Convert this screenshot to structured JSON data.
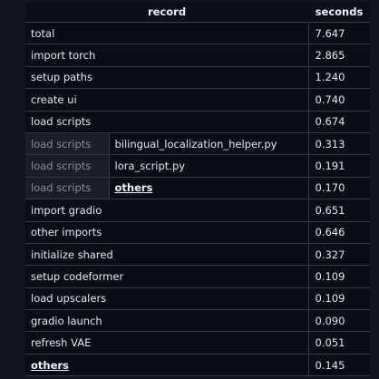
{
  "table": {
    "headers": {
      "record": "record",
      "seconds": "seconds"
    },
    "rows": [
      {
        "record": "total",
        "seconds": "7.647"
      },
      {
        "record": "import torch",
        "seconds": "2.865"
      },
      {
        "record": "setup paths",
        "seconds": "1.240"
      },
      {
        "record": "create ui",
        "seconds": "0.740"
      },
      {
        "record": "load scripts",
        "seconds": "0.674"
      },
      {
        "record": "load scripts",
        "name": "bilingual_localization_helper.py",
        "seconds": "0.313"
      },
      {
        "record": "load scripts",
        "name": "lora_script.py",
        "seconds": "0.191"
      },
      {
        "record": "load scripts",
        "name": "others",
        "seconds": "0.170"
      },
      {
        "record": "import gradio",
        "seconds": "0.651"
      },
      {
        "record": "other imports",
        "seconds": "0.646"
      },
      {
        "record": "initialize shared",
        "seconds": "0.327"
      },
      {
        "record": "setup codeformer",
        "seconds": "0.109"
      },
      {
        "record": "load upscalers",
        "seconds": "0.109"
      },
      {
        "record": "gradio launch",
        "seconds": "0.090"
      },
      {
        "record": "refresh VAE",
        "seconds": "0.051"
      },
      {
        "record": "others",
        "seconds": "0.145"
      }
    ]
  }
}
